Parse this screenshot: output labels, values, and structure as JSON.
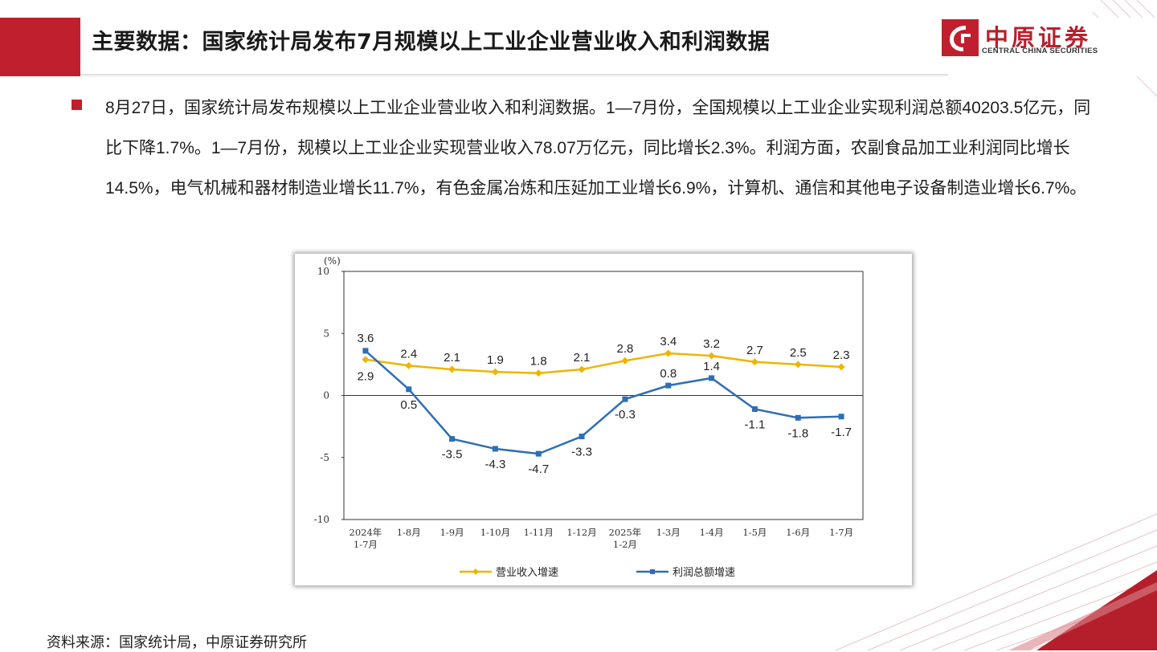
{
  "header": {
    "title": "主要数据：国家统计局发布7月规模以上工业企业营业收入和利润数据",
    "logo_cn": "中原证券",
    "logo_en": "CENTRAL CHINA SECURITIES",
    "accent_color": "#c0202e"
  },
  "body": {
    "paragraph": "8月27日，国家统计局发布规模以上工业企业营业收入和利润数据。1—7月份，全国规模以上工业企业实现利润总额40203.5亿元，同比下降1.7%。1—7月份，规模以上工业企业实现营业收入78.07万亿元，同比增长2.3%。利润方面，农副食品加工业利润同比增长14.5%，电气机械和器材制造业增长11.7%，有色金属冶炼和压延加工业增长6.9%，计算机、通信和其他电子设备制造业增长6.7%。"
  },
  "chart_data": {
    "type": "line",
    "unit_label": "(%)",
    "categories": [
      "2024年\n1-7月",
      "1-8月",
      "1-9月",
      "1-10月",
      "1-11月",
      "1-12月",
      "2025年\n1-2月",
      "1-3月",
      "1-4月",
      "1-5月",
      "1-6月",
      "1-7月"
    ],
    "ylim": [
      -10,
      10
    ],
    "yticks": [
      "10",
      "5",
      "0",
      "-5",
      "-10"
    ],
    "legend_position": "bottom",
    "series": [
      {
        "name": "营业收入增速",
        "color": "#f0b400",
        "marker": "diamond",
        "values": [
          2.9,
          2.4,
          2.1,
          1.9,
          1.8,
          2.1,
          2.8,
          3.4,
          3.2,
          2.7,
          2.5,
          2.3
        ],
        "labels": [
          "2.9",
          "2.4",
          "2.1",
          "1.9",
          "1.8",
          "2.1",
          "2.8",
          "3.4",
          "3.2",
          "2.7",
          "2.5",
          "2.3"
        ]
      },
      {
        "name": "利润总额增速",
        "color": "#2f6eb5",
        "marker": "square",
        "values": [
          3.6,
          0.5,
          -3.5,
          -4.3,
          -4.7,
          -3.3,
          -0.3,
          0.8,
          1.4,
          -1.1,
          -1.8,
          -1.7
        ],
        "labels": [
          "3.6",
          "0.5",
          "-3.5",
          "-4.3",
          "-4.7",
          "-3.3",
          "-0.3",
          "0.8",
          "1.4",
          "-1.1",
          "-1.8",
          "-1.7"
        ]
      }
    ]
  },
  "footer": {
    "source": "资料来源：国家统计局，中原证券研究所"
  }
}
